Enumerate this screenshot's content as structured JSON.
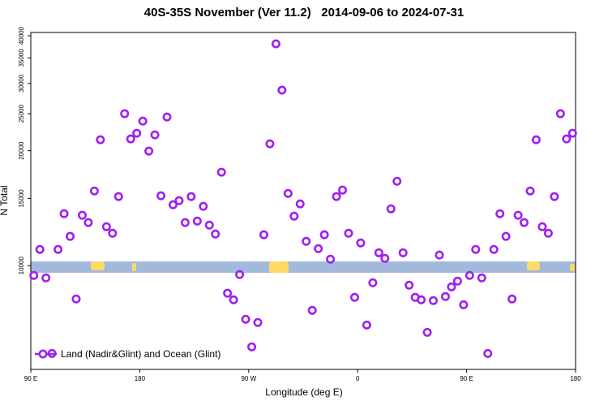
{
  "chart_data": {
    "type": "scatter",
    "title": "40S-35S November (Ver 11.2)   2014-09-06 to 2024-07-31",
    "xlabel": "Longitude (deg E)",
    "ylabel": "N Total",
    "xlim": [
      90,
      540
    ],
    "xticks": [
      {
        "value": 90,
        "label": "90 E"
      },
      {
        "value": 180,
        "label": "180"
      },
      {
        "value": 270,
        "label": "90 W"
      },
      {
        "value": 360,
        "label": "0"
      },
      {
        "value": 450,
        "label": "90 E"
      },
      {
        "value": 540,
        "label": "180"
      }
    ],
    "ylim": [
      5350,
      40800
    ],
    "yticks": [
      10000,
      15000,
      20000,
      25000,
      30000,
      35000,
      40000
    ],
    "log_y": true,
    "legend": "bottomleft",
    "x": [
      92.5,
      97.5,
      102.5,
      107.5,
      112.5,
      117.5,
      122.5,
      127.5,
      132.5,
      137.5,
      142.5,
      147.5,
      152.5,
      157.5,
      162.5,
      167.5,
      172.5,
      177.5,
      182.5,
      187.5,
      192.5,
      197.5,
      202.5,
      207.5,
      212.5,
      217.5,
      222.5,
      227.5,
      232.5,
      237.5,
      242.5,
      247.5,
      252.5,
      257.5,
      262.5,
      267.5,
      272.5,
      277.5,
      282.5,
      287.5,
      292.5,
      297.5,
      302.5,
      307.5,
      312.5,
      317.5,
      322.5,
      327.5,
      332.5,
      337.5,
      342.5,
      347.5,
      352.5,
      357.5,
      362.5,
      367.5,
      372.5,
      377.5,
      382.5,
      387.5,
      392.5,
      397.5,
      402.5,
      407.5,
      412.5,
      417.5,
      422.5,
      427.5,
      432.5,
      437.5,
      442.5,
      447.5,
      452.5,
      457.5,
      462.5,
      467.5,
      472.5,
      477.5,
      482.5,
      487.5,
      492.5,
      497.5,
      502.5,
      507.5,
      512.5,
      517.5,
      522.5,
      527.5,
      532.5,
      537.5
    ],
    "series": [
      {
        "name": "Land (Nadir&Glint) and Ocean (Glint)",
        "color": "#a020f0",
        "values": [
          9430,
          11030,
          9290,
          5890,
          11030,
          13680,
          11930,
          8180,
          13550,
          12970,
          15690,
          21370,
          12650,
          12160,
          15170,
          25000,
          21470,
          22220,
          23910,
          19950,
          22000,
          15240,
          24510,
          14440,
          14800,
          12970,
          15170,
          13090,
          14300,
          12770,
          12100,
          17570,
          8470,
          8140,
          9480,
          7240,
          6130,
          7100,
          12050,
          20850,
          38100,
          28820,
          15460,
          13480,
          14510,
          11580,
          7640,
          11080,
          12050,
          10400,
          15170,
          15770,
          12160,
          8260,
          11470,
          6990,
          9020,
          10810,
          10450,
          14090,
          16640,
          10810,
          8890,
          8260,
          8140,
          6690,
          8100,
          10660,
          8300,
          8800,
          9110,
          7900,
          9430,
          11030,
          9290,
          5890,
          11030,
          13680,
          11930,
          8180,
          13550,
          12970,
          15690,
          21370,
          12650,
          12160,
          15170,
          25000,
          21470,
          22220
        ]
      }
    ]
  }
}
